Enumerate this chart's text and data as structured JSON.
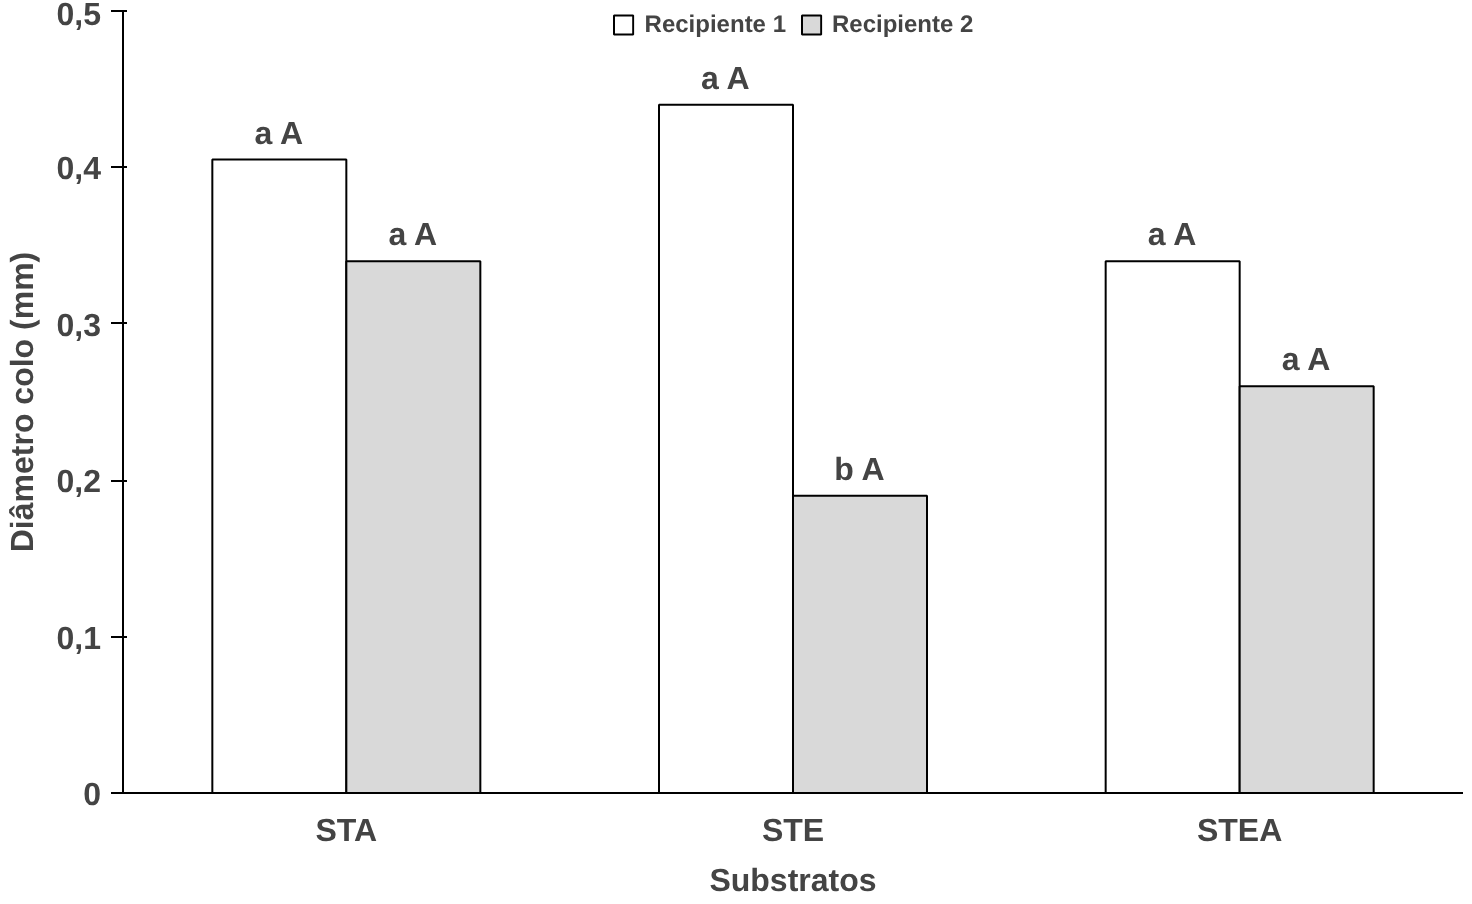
{
  "chart_data": {
    "type": "bar",
    "xlabel": "Substratos",
    "ylabel": "Diâmetro colo (mm)",
    "categories": [
      "STA",
      "STE",
      "STEA"
    ],
    "series": [
      {
        "name": "Recipiente 1",
        "color": "#ffffff",
        "values": [
          0.405,
          0.44,
          0.34
        ],
        "value_labels": [
          "a A",
          "a A",
          "a A"
        ]
      },
      {
        "name": "Recipiente 2",
        "color": "#d9d9d9",
        "values": [
          0.34,
          0.19,
          0.26
        ],
        "value_labels": [
          "a A",
          "b A",
          "a A"
        ]
      }
    ],
    "ylim": [
      0,
      0.5
    ],
    "yticks": [
      0,
      {
        "value": 0.1,
        "label": "0,1"
      },
      {
        "value": 0.2,
        "label": "0,2"
      },
      {
        "value": 0.3,
        "label": "0,3"
      },
      {
        "value": 0.4,
        "label": "0,4"
      },
      {
        "value": 0.5,
        "label": "0,5"
      }
    ],
    "grid": false,
    "legend": "top"
  }
}
